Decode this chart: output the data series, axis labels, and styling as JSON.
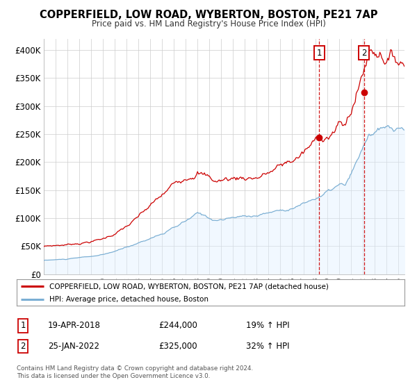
{
  "title": "COPPERFIELD, LOW ROAD, WYBERTON, BOSTON, PE21 7AP",
  "subtitle": "Price paid vs. HM Land Registry's House Price Index (HPI)",
  "ylim": [
    0,
    420000
  ],
  "yticks": [
    0,
    50000,
    100000,
    150000,
    200000,
    250000,
    300000,
    350000,
    400000
  ],
  "ytick_labels": [
    "£0",
    "£50K",
    "£100K",
    "£150K",
    "£200K",
    "£250K",
    "£300K",
    "£350K",
    "£400K"
  ],
  "xlim_start": 1995.0,
  "xlim_end": 2025.5,
  "red_line_color": "#cc0000",
  "blue_line_color": "#7bafd4",
  "blue_fill_color": "#ddeeff",
  "marker1_x": 2018.29,
  "marker1_y": 244000,
  "marker2_x": 2022.07,
  "marker2_y": 325000,
  "vline1_x": 2018.29,
  "vline2_x": 2022.07,
  "legend_label_red": "COPPERFIELD, LOW ROAD, WYBERTON, BOSTON, PE21 7AP (detached house)",
  "legend_label_blue": "HPI: Average price, detached house, Boston",
  "table_data": [
    [
      "1",
      "19-APR-2018",
      "£244,000",
      "19% ↑ HPI"
    ],
    [
      "2",
      "25-JAN-2022",
      "£325,000",
      "32% ↑ HPI"
    ]
  ],
  "footnote": "Contains HM Land Registry data © Crown copyright and database right 2024.\nThis data is licensed under the Open Government Licence v3.0.",
  "background_color": "#ffffff",
  "grid_color": "#cccccc"
}
